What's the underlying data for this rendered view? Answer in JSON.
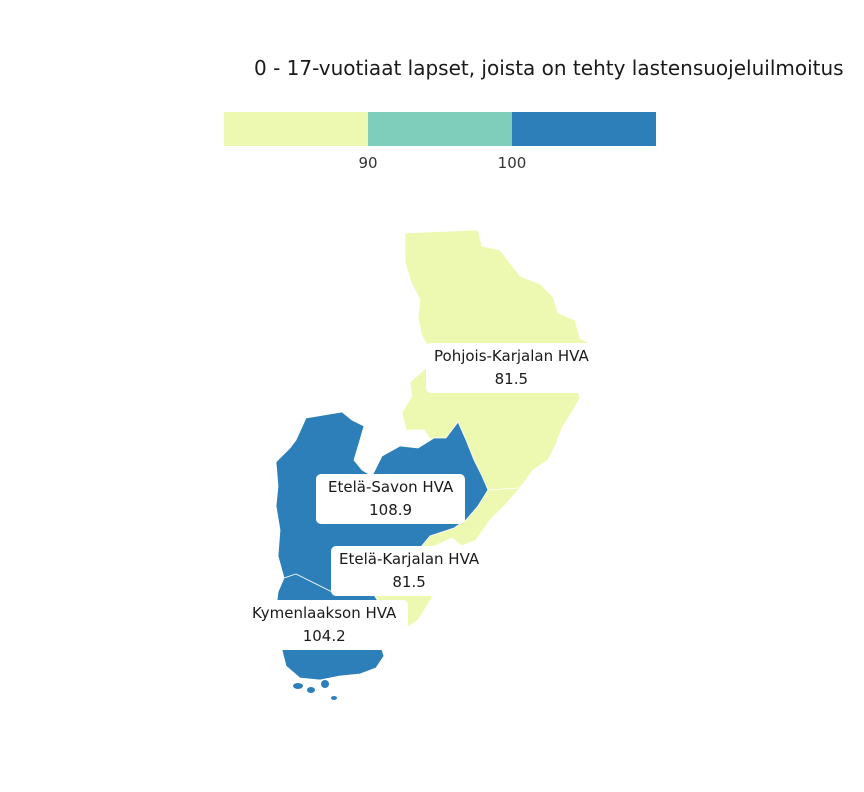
{
  "title": "0 - 17-vuotiaat lapset, joista on tehty lastensuojeluilmoitus",
  "legend": {
    "colors": [
      "#edf8b1",
      "#7fcdbb",
      "#2c7fb8"
    ],
    "breaks": [
      "90",
      "100"
    ]
  },
  "regions": [
    {
      "id": "pohjois-karjala",
      "name": "Pohjois-Karjalan HVA",
      "value": "81.5",
      "color": "#edf8b1"
    },
    {
      "id": "etela-savo",
      "name": "Etelä-Savon HVA",
      "value": "108.9",
      "color": "#2c7fb8"
    },
    {
      "id": "etela-karjala",
      "name": "Etelä-Karjalan HVA",
      "value": "81.5",
      "color": "#edf8b1"
    },
    {
      "id": "kymenlaakso",
      "name": "Kymenlaakson HVA",
      "value": "104.2",
      "color": "#2c7fb8"
    }
  ]
}
